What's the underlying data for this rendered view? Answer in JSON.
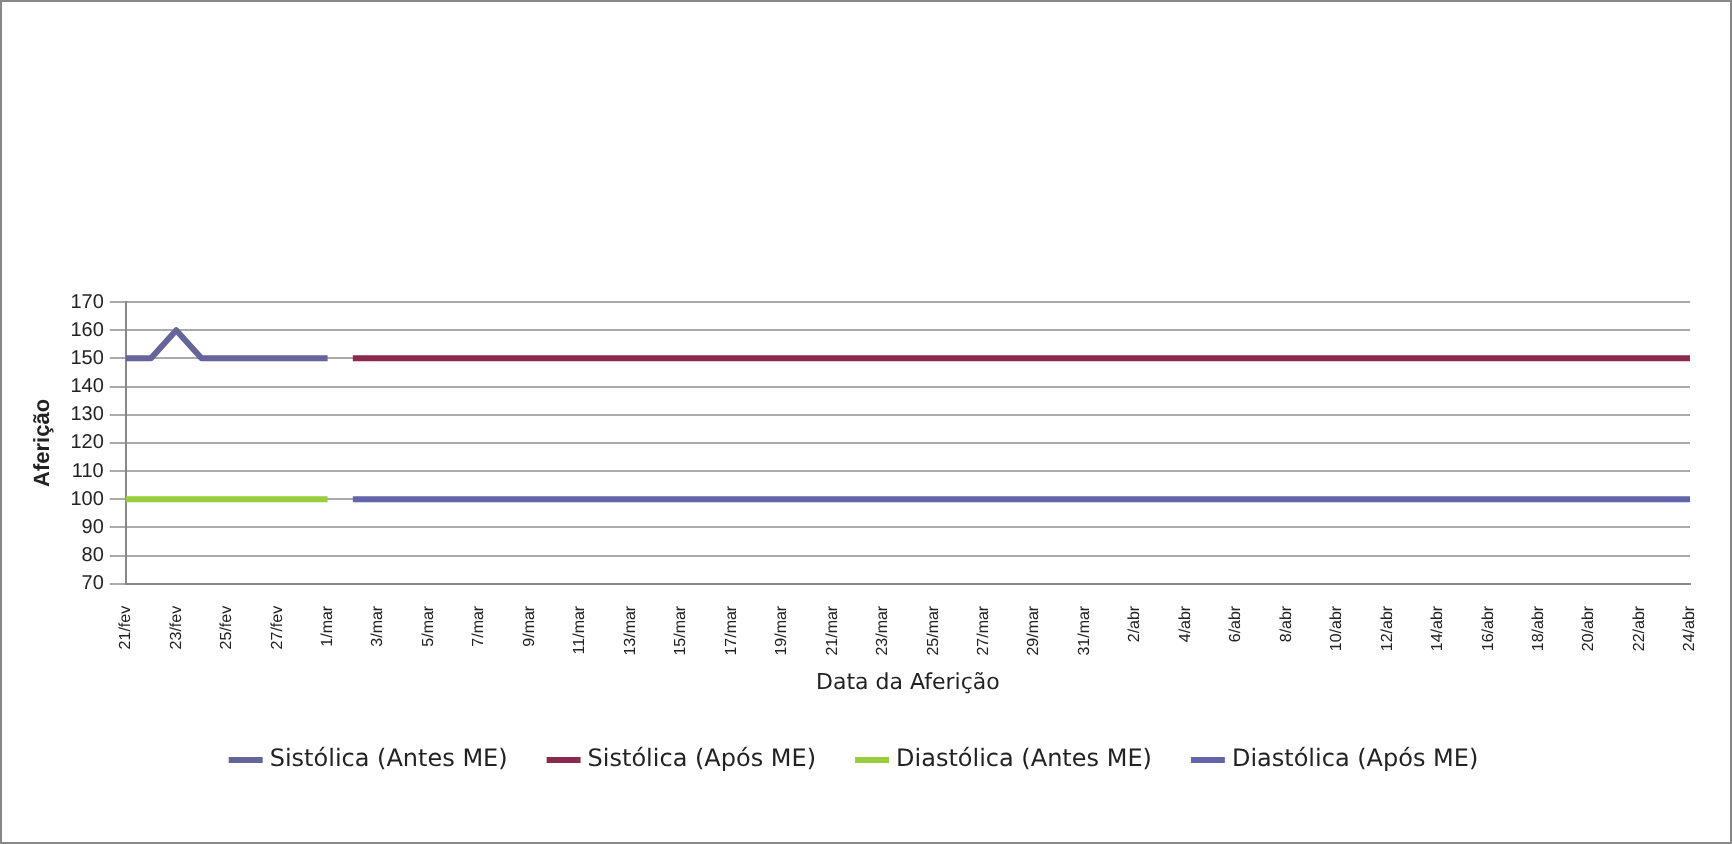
{
  "chart_data": {
    "type": "line",
    "xlabel": "Data da Aferição",
    "ylabel": "Aferição",
    "categories": [
      "21/fev",
      null,
      "23/fev",
      null,
      "25/fev",
      null,
      "27/fev",
      null,
      "1/mar",
      null,
      "3/mar",
      null,
      "5/mar",
      null,
      "7/mar",
      null,
      "9/mar",
      null,
      "11/mar",
      null,
      "13/mar",
      null,
      "15/mar",
      null,
      "17/mar",
      null,
      "19/mar",
      null,
      "21/mar",
      null,
      "23/mar",
      null,
      "25/mar",
      null,
      "27/mar",
      null,
      "29/mar",
      null,
      "31/mar",
      null,
      "2/abr",
      null,
      "4/abr",
      null,
      "6/abr",
      null,
      "8/abr",
      null,
      "10/abr",
      null,
      "12/abr",
      null,
      "14/abr",
      null,
      "16/abr",
      null,
      "18/abr",
      null,
      "20/abr",
      null,
      "22/abr",
      null,
      "24/abr"
    ],
    "series": [
      {
        "name": "Sistólica (Antes ME)",
        "color": "#65659a",
        "values": [
          150,
          150,
          160,
          150,
          150,
          150,
          150,
          150,
          150,
          null,
          null,
          null,
          null,
          null,
          null,
          null,
          null,
          null,
          null,
          null,
          null,
          null,
          null,
          null,
          null,
          null,
          null,
          null,
          null,
          null,
          null,
          null,
          null,
          null,
          null,
          null,
          null,
          null,
          null,
          null,
          null,
          null,
          null,
          null,
          null,
          null,
          null,
          null,
          null,
          null,
          null,
          null,
          null,
          null,
          null,
          null,
          null,
          null,
          null,
          null,
          null,
          null,
          null
        ]
      },
      {
        "name": "Sistólica (Após ME)",
        "color": "#8c2a4e",
        "values": [
          null,
          null,
          null,
          null,
          null,
          null,
          null,
          null,
          null,
          150,
          150,
          150,
          150,
          150,
          150,
          150,
          150,
          150,
          150,
          150,
          150,
          150,
          150,
          150,
          150,
          150,
          150,
          150,
          150,
          150,
          150,
          150,
          150,
          150,
          150,
          150,
          150,
          150,
          150,
          150,
          150,
          150,
          150,
          150,
          150,
          150,
          150,
          150,
          150,
          150,
          150,
          150,
          150,
          150,
          150,
          150,
          150,
          150,
          150,
          150,
          150,
          150,
          150
        ]
      },
      {
        "name": "Diastólica (Antes ME)",
        "color": "#9acd3c",
        "values": [
          100,
          100,
          100,
          100,
          100,
          100,
          100,
          100,
          100,
          null,
          null,
          null,
          null,
          null,
          null,
          null,
          null,
          null,
          null,
          null,
          null,
          null,
          null,
          null,
          null,
          null,
          null,
          null,
          null,
          null,
          null,
          null,
          null,
          null,
          null,
          null,
          null,
          null,
          null,
          null,
          null,
          null,
          null,
          null,
          null,
          null,
          null,
          null,
          null,
          null,
          null,
          null,
          null,
          null,
          null,
          null,
          null,
          null,
          null,
          null,
          null,
          null,
          null
        ]
      },
      {
        "name": "Diastólica (Após ME)",
        "color": "#6464aa",
        "values": [
          null,
          null,
          null,
          null,
          null,
          null,
          null,
          null,
          null,
          100,
          100,
          100,
          100,
          100,
          100,
          100,
          100,
          100,
          100,
          100,
          100,
          100,
          100,
          100,
          100,
          100,
          100,
          100,
          100,
          100,
          100,
          100,
          100,
          100,
          100,
          100,
          100,
          100,
          100,
          100,
          100,
          100,
          100,
          100,
          100,
          100,
          100,
          100,
          100,
          100,
          100,
          100,
          100,
          100,
          100,
          100,
          100,
          100,
          100,
          100,
          100,
          100,
          100
        ]
      }
    ],
    "ylim": [
      70,
      170
    ],
    "yticks": [
      70,
      80,
      90,
      100,
      110,
      120,
      130,
      140,
      150,
      160,
      170
    ],
    "grid": "y",
    "legend": "bottom",
    "marker": "none",
    "line_style": "solid"
  }
}
